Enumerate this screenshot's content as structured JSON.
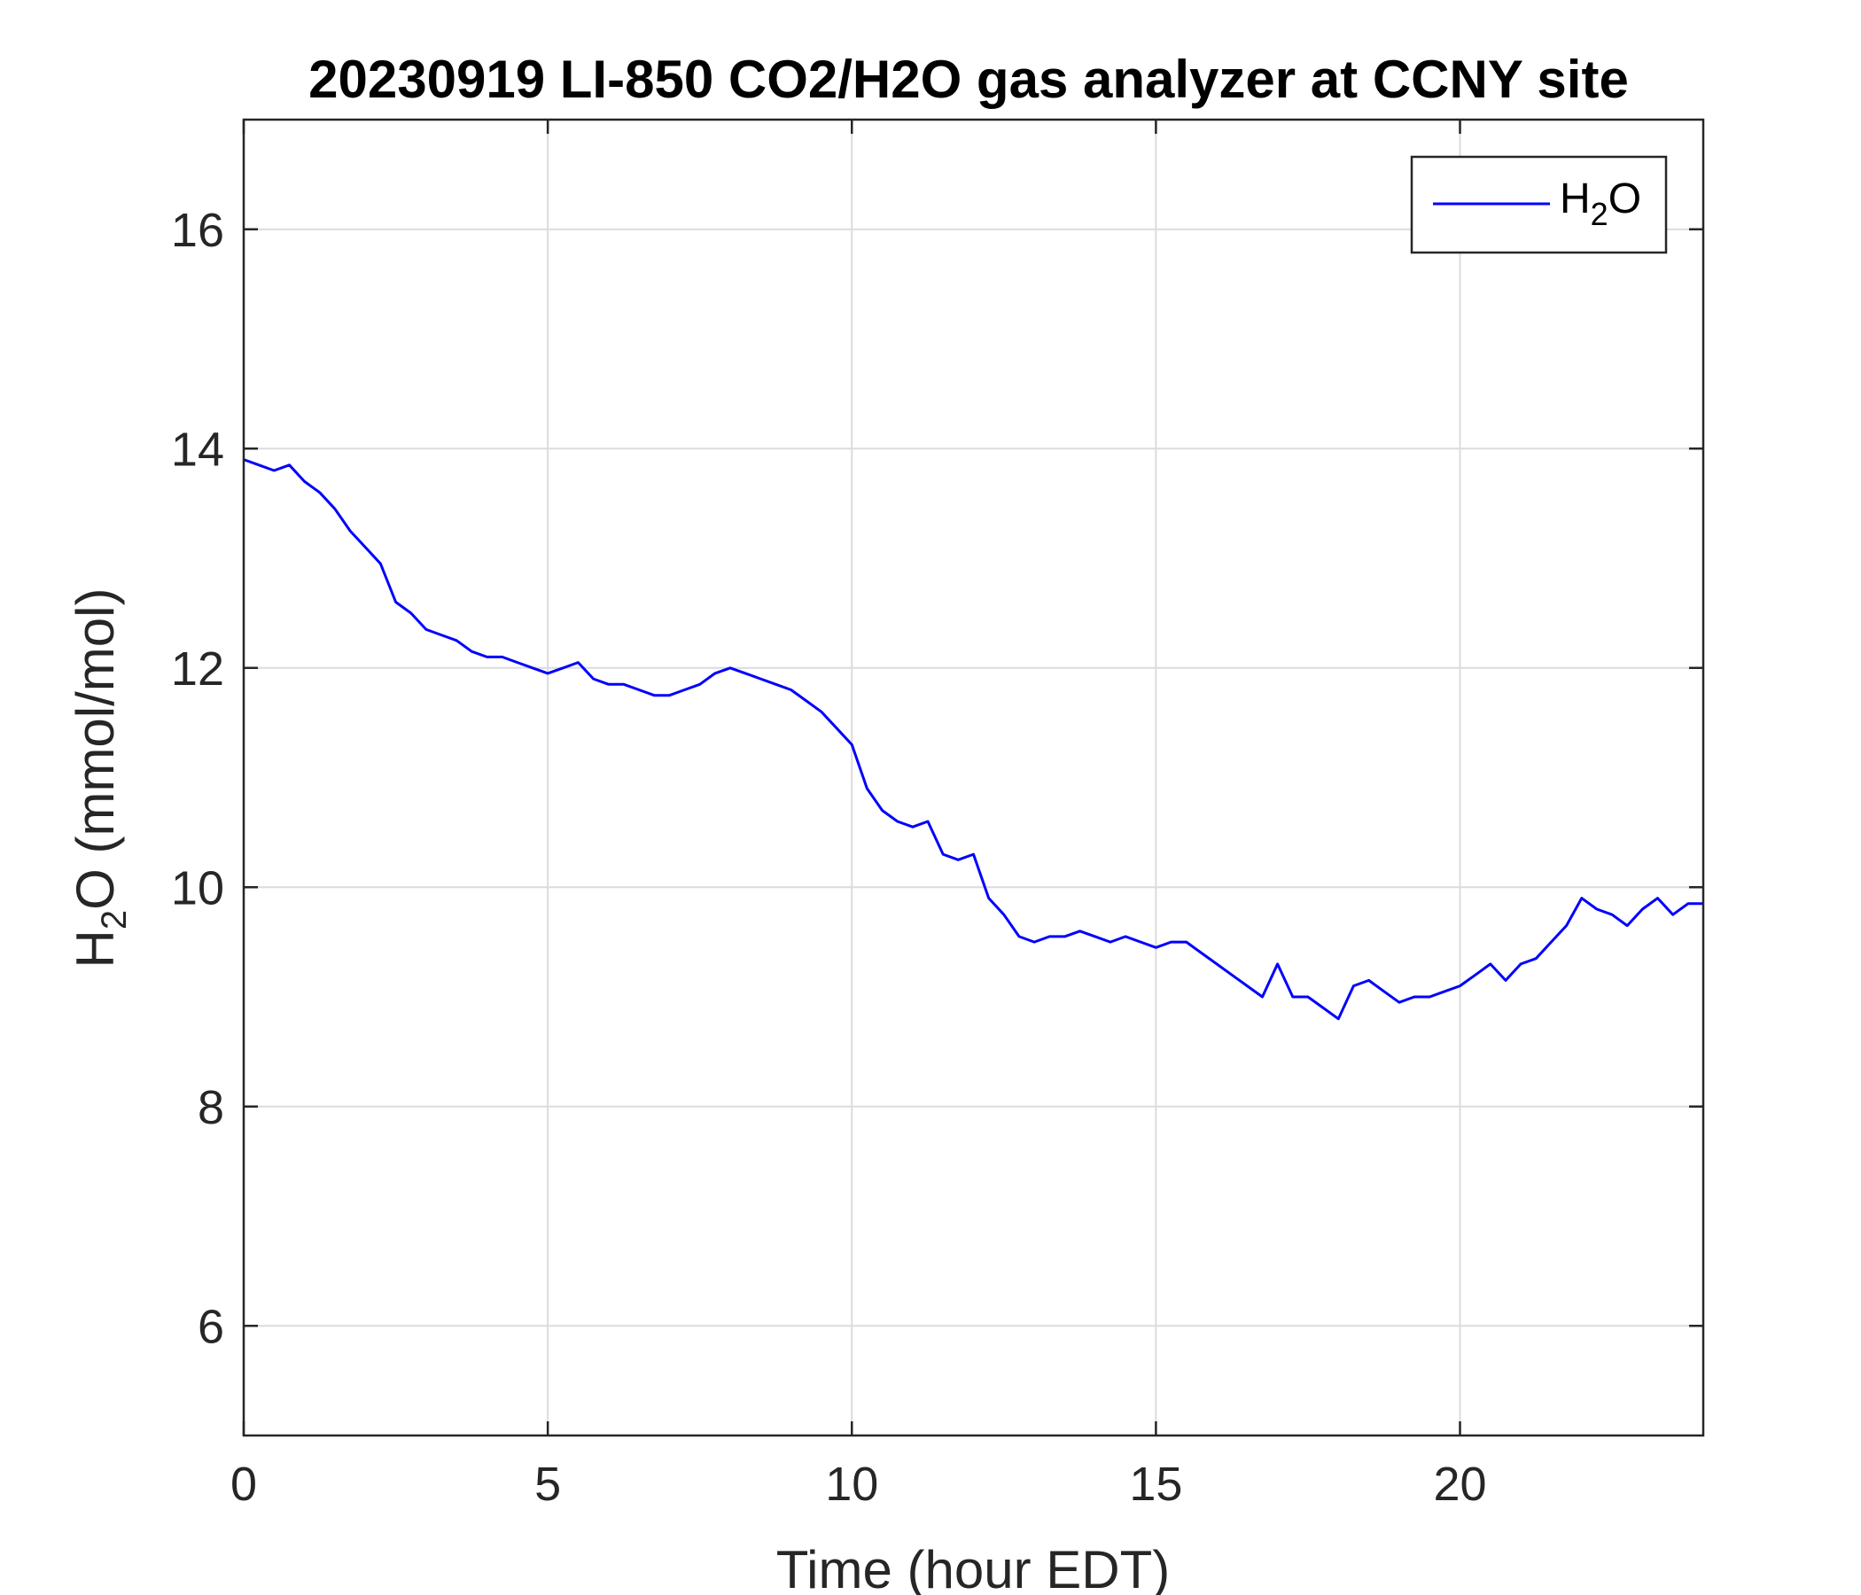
{
  "chart_data": {
    "type": "line",
    "title": "20230919 LI-850 CO2/H2O gas analyzer at CCNY site",
    "xlabel": "Time (hour EDT)",
    "ylabel": {
      "main": "H",
      "sub": "2",
      "rest": "O (mmol/mol)"
    },
    "xlim": [
      0,
      24
    ],
    "ylim": [
      5,
      17
    ],
    "xticks": [
      0,
      5,
      10,
      15,
      20
    ],
    "yticks": [
      6,
      8,
      10,
      12,
      14,
      16
    ],
    "grid": true,
    "legend_position": "top-right",
    "series": [
      {
        "name": {
          "main": "H",
          "sub": "2",
          "rest": "O"
        },
        "color": "#0000ff",
        "x": [
          0,
          0.25,
          0.5,
          0.75,
          1.0,
          1.25,
          1.5,
          1.75,
          2.0,
          2.25,
          2.5,
          2.75,
          3.0,
          3.25,
          3.5,
          3.75,
          4.0,
          4.25,
          4.5,
          4.75,
          5.0,
          5.25,
          5.5,
          5.75,
          6.0,
          6.25,
          6.5,
          6.75,
          7.0,
          7.25,
          7.5,
          7.75,
          8.0,
          8.25,
          8.5,
          8.75,
          9.0,
          9.25,
          9.5,
          9.75,
          10.0,
          10.25,
          10.5,
          10.75,
          11.0,
          11.25,
          11.5,
          11.75,
          12.0,
          12.25,
          12.5,
          12.75,
          13.0,
          13.25,
          13.5,
          13.75,
          14.0,
          14.25,
          14.5,
          14.75,
          15.0,
          15.25,
          15.5,
          15.75,
          16.0,
          16.25,
          16.5,
          16.75,
          17.0,
          17.25,
          17.5,
          17.75,
          18.0,
          18.25,
          18.5,
          18.75,
          19.0,
          19.25,
          19.5,
          19.75,
          20.0,
          20.25,
          20.5,
          20.75,
          21.0,
          21.25,
          21.5,
          21.75,
          22.0,
          22.25,
          22.5,
          22.75,
          23.0,
          23.25,
          23.5,
          23.75,
          24.0
        ],
        "y": [
          13.9,
          13.85,
          13.8,
          13.85,
          13.7,
          13.6,
          13.45,
          13.25,
          13.1,
          12.95,
          12.6,
          12.5,
          12.35,
          12.3,
          12.25,
          12.15,
          12.1,
          12.1,
          12.05,
          12.0,
          11.95,
          12.0,
          12.05,
          11.9,
          11.85,
          11.85,
          11.8,
          11.75,
          11.75,
          11.8,
          11.85,
          11.95,
          12.0,
          11.95,
          11.9,
          11.85,
          11.8,
          11.7,
          11.6,
          11.45,
          11.3,
          10.9,
          10.7,
          10.6,
          10.55,
          10.6,
          10.3,
          10.25,
          10.3,
          9.9,
          9.75,
          9.55,
          9.5,
          9.55,
          9.55,
          9.6,
          9.55,
          9.5,
          9.55,
          9.5,
          9.45,
          9.5,
          9.5,
          9.4,
          9.3,
          9.2,
          9.1,
          9.0,
          9.3,
          9.0,
          9.0,
          8.9,
          8.8,
          9.1,
          9.15,
          9.05,
          8.95,
          9.0,
          9.0,
          9.05,
          9.1,
          9.2,
          9.3,
          9.15,
          9.3,
          9.35,
          9.5,
          9.65,
          9.9,
          9.8,
          9.75,
          9.65,
          9.8,
          9.9,
          9.75,
          9.85,
          9.85
        ]
      }
    ]
  }
}
